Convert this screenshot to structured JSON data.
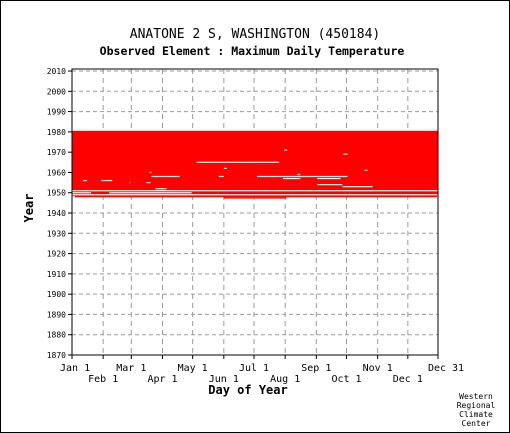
{
  "chart_data": {
    "type": "heatmap",
    "title": "ANATONE 2 S, WASHINGTON   (450184)",
    "subtitle": "Observed Element : Maximum Daily Temperature",
    "xlabel": "Day of Year",
    "ylabel": "Year",
    "xlim": [
      1,
      365
    ],
    "ylim": [
      1870,
      2011
    ],
    "grid": true,
    "x_ticks_top": [
      {
        "label": "Jan 1",
        "day": 1
      },
      {
        "label": "Mar 1",
        "day": 60
      },
      {
        "label": "May 1",
        "day": 121
      },
      {
        "label": "Jul 1",
        "day": 182
      },
      {
        "label": "Sep 1",
        "day": 244
      },
      {
        "label": "Nov 1",
        "day": 305
      },
      {
        "label": "Dec 31",
        "day": 365
      }
    ],
    "x_ticks_bottom": [
      {
        "label": "Feb 1",
        "day": 32
      },
      {
        "label": "Apr 1",
        "day": 91
      },
      {
        "label": "Jun 1",
        "day": 152
      },
      {
        "label": "Aug 1",
        "day": 213
      },
      {
        "label": "Oct 1",
        "day": 274
      },
      {
        "label": "Dec 1",
        "day": 335
      }
    ],
    "y_ticks": [
      2010,
      2000,
      1990,
      1980,
      1970,
      1960,
      1950,
      1940,
      1930,
      1920,
      1910,
      1900,
      1890,
      1880,
      1870
    ],
    "data_color": "#ff0000",
    "observed_years": [
      1948,
      1980
    ],
    "gaps": [
      {
        "year": 1965,
        "days": [
          125,
          207
        ]
      },
      {
        "year": 1958,
        "days": [
          80,
          108
        ]
      },
      {
        "year": 1958,
        "days": [
          147,
          152
        ]
      },
      {
        "year": 1958,
        "days": [
          185,
          275
        ]
      },
      {
        "year": 1957,
        "days": [
          211,
          228
        ]
      },
      {
        "year": 1957,
        "days": [
          245,
          268
        ]
      },
      {
        "year": 1956,
        "days": [
          12,
          16
        ]
      },
      {
        "year": 1956,
        "days": [
          30,
          41
        ]
      },
      {
        "year": 1955,
        "days": [
          58,
          59
        ]
      },
      {
        "year": 1955,
        "days": [
          75,
          79
        ]
      },
      {
        "year": 1954,
        "days": [
          245,
          270
        ]
      },
      {
        "year": 1953,
        "days": [
          270,
          300
        ]
      },
      {
        "year": 1952,
        "days": [
          84,
          95
        ]
      },
      {
        "year": 1951,
        "days": [
          1,
          365
        ]
      },
      {
        "year": 1950,
        "days": [
          1,
          20
        ]
      },
      {
        "year": 1950,
        "days": [
          38,
          120
        ]
      },
      {
        "year": 1949,
        "days": [
          1,
          365
        ]
      },
      {
        "year": 1948,
        "days": [
          1,
          4
        ]
      },
      {
        "year": 1948,
        "days": [
          364,
          365
        ]
      },
      {
        "year": 1969,
        "days": [
          271,
          275
        ]
      },
      {
        "year": 1971,
        "days": [
          212,
          215
        ]
      },
      {
        "year": 1962,
        "days": [
          152,
          155
        ]
      },
      {
        "year": 1961,
        "days": [
          292,
          295
        ]
      },
      {
        "year": 1960,
        "days": [
          78,
          80
        ]
      },
      {
        "year": 1959,
        "days": [
          225,
          228
        ]
      }
    ],
    "extra": [
      {
        "year": 1948,
        "days": [
          152,
          214
        ]
      }
    ]
  },
  "credit": [
    "Western",
    "Regional",
    "Climate",
    "Center"
  ]
}
